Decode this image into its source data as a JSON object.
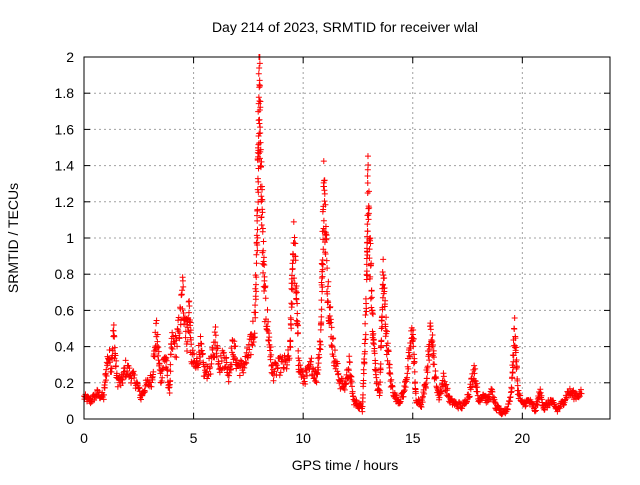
{
  "chart_data": {
    "type": "scatter",
    "title": "Day 214 of 2023, SRMTID for receiver wlal",
    "xlabel": "GPS time / hours",
    "ylabel": "SRMTID / TECUs",
    "xlim": [
      0,
      24
    ],
    "ylim": [
      0,
      2
    ],
    "grid": true,
    "marker": "+",
    "marker_color": "#ff0000",
    "xticks": [
      0,
      5,
      10,
      15,
      20
    ],
    "xtick_labels": [
      "0",
      "5",
      "10",
      "15",
      "20"
    ],
    "yticks": [
      0,
      0.2,
      0.4,
      0.6,
      0.8,
      1,
      1.2,
      1.4,
      1.6,
      1.8,
      2
    ],
    "ytick_labels": [
      "0",
      "0.2",
      "0.4",
      "0.6",
      "0.8",
      "1",
      "1.2",
      "1.4",
      "1.6",
      "1.8",
      "2"
    ],
    "series": [
      {
        "name": "SRMTID",
        "segments": [
          [
            0.0,
            0.12
          ],
          [
            0.3,
            0.1
          ],
          [
            0.6,
            0.14
          ],
          [
            0.9,
            0.12
          ],
          [
            1.0,
            0.25
          ],
          [
            1.1,
            0.35
          ],
          [
            1.25,
            0.3
          ],
          [
            1.35,
            0.48
          ],
          [
            1.5,
            0.22
          ],
          [
            1.7,
            0.2
          ],
          [
            1.9,
            0.28
          ],
          [
            2.1,
            0.25
          ],
          [
            2.4,
            0.2
          ],
          [
            2.6,
            0.12
          ],
          [
            2.8,
            0.18
          ],
          [
            3.1,
            0.22
          ],
          [
            3.3,
            0.48
          ],
          [
            3.5,
            0.22
          ],
          [
            3.7,
            0.35
          ],
          [
            3.9,
            0.15
          ],
          [
            4.0,
            0.42
          ],
          [
            4.2,
            0.4
          ],
          [
            4.4,
            0.55
          ],
          [
            4.5,
            0.7
          ],
          [
            4.7,
            0.45
          ],
          [
            4.8,
            0.62
          ],
          [
            4.9,
            0.35
          ],
          [
            5.1,
            0.28
          ],
          [
            5.3,
            0.4
          ],
          [
            5.5,
            0.25
          ],
          [
            5.8,
            0.3
          ],
          [
            6.0,
            0.45
          ],
          [
            6.2,
            0.3
          ],
          [
            6.4,
            0.35
          ],
          [
            6.6,
            0.25
          ],
          [
            6.8,
            0.4
          ],
          [
            7.0,
            0.3
          ],
          [
            7.2,
            0.28
          ],
          [
            7.4,
            0.32
          ],
          [
            7.6,
            0.4
          ],
          [
            7.8,
            0.55
          ],
          [
            7.9,
            1.0
          ],
          [
            8.0,
            1.96
          ],
          [
            8.05,
            1.5
          ],
          [
            8.15,
            1.0
          ],
          [
            8.25,
            0.65
          ],
          [
            8.4,
            0.5
          ],
          [
            8.6,
            0.25
          ],
          [
            8.8,
            0.28
          ],
          [
            9.0,
            0.3
          ],
          [
            9.2,
            0.3
          ],
          [
            9.4,
            0.35
          ],
          [
            9.55,
            0.98
          ],
          [
            9.65,
            0.82
          ],
          [
            9.8,
            0.3
          ],
          [
            10.0,
            0.22
          ],
          [
            10.2,
            0.25
          ],
          [
            10.4,
            0.3
          ],
          [
            10.6,
            0.22
          ],
          [
            10.8,
            0.45
          ],
          [
            10.95,
            1.3
          ],
          [
            11.0,
            1.1
          ],
          [
            11.1,
            0.8
          ],
          [
            11.2,
            0.6
          ],
          [
            11.35,
            0.4
          ],
          [
            11.5,
            0.3
          ],
          [
            11.7,
            0.2
          ],
          [
            11.9,
            0.18
          ],
          [
            12.1,
            0.3
          ],
          [
            12.3,
            0.1
          ],
          [
            12.5,
            0.08
          ],
          [
            12.7,
            0.06
          ],
          [
            12.9,
            0.7
          ],
          [
            12.95,
            1.28
          ],
          [
            13.05,
            0.9
          ],
          [
            13.2,
            0.45
          ],
          [
            13.35,
            0.2
          ],
          [
            13.5,
            0.15
          ],
          [
            13.65,
            0.8
          ],
          [
            13.8,
            0.45
          ],
          [
            14.0,
            0.2
          ],
          [
            14.2,
            0.12
          ],
          [
            14.4,
            0.1
          ],
          [
            14.6,
            0.15
          ],
          [
            14.8,
            0.3
          ],
          [
            15.0,
            0.5
          ],
          [
            15.15,
            0.1
          ],
          [
            15.4,
            0.08
          ],
          [
            15.6,
            0.2
          ],
          [
            15.85,
            0.52
          ],
          [
            16.0,
            0.25
          ],
          [
            16.2,
            0.12
          ],
          [
            16.4,
            0.22
          ],
          [
            16.7,
            0.1
          ],
          [
            17.0,
            0.08
          ],
          [
            17.3,
            0.07
          ],
          [
            17.6,
            0.15
          ],
          [
            17.8,
            0.28
          ],
          [
            18.0,
            0.1
          ],
          [
            18.2,
            0.14
          ],
          [
            18.4,
            0.1
          ],
          [
            18.6,
            0.15
          ],
          [
            18.8,
            0.06
          ],
          [
            19.0,
            0.04
          ],
          [
            19.3,
            0.05
          ],
          [
            19.5,
            0.15
          ],
          [
            19.65,
            0.5
          ],
          [
            19.8,
            0.15
          ],
          [
            20.0,
            0.08
          ],
          [
            20.3,
            0.1
          ],
          [
            20.6,
            0.05
          ],
          [
            20.8,
            0.15
          ],
          [
            21.0,
            0.06
          ],
          [
            21.3,
            0.1
          ],
          [
            21.6,
            0.05
          ],
          [
            21.9,
            0.1
          ],
          [
            22.1,
            0.15
          ],
          [
            22.4,
            0.13
          ],
          [
            22.7,
            0.14
          ]
        ]
      }
    ]
  }
}
